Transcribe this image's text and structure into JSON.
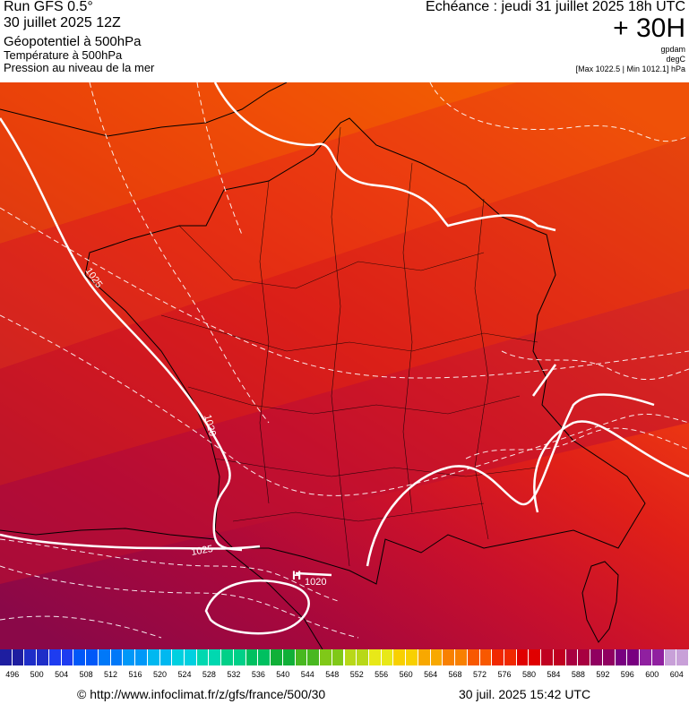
{
  "header": {
    "run": "Run GFS 0.5°",
    "run_date": "30 juillet 2025 12Z",
    "field1": "Géopotentiel à 500hPa",
    "field2": "Température à 500hPa",
    "field3": "Pression au niveau de la mer",
    "echeance": "Echéance : jeudi 31 juillet 2025 18h UTC",
    "forecast_hour": "+ 30H",
    "unit_gpdam": "gpdam",
    "unit_degc": "degC",
    "minmax": "[Max 1022.5 | Min 1012.1] hPa"
  },
  "map_labels": {
    "isobar_1025_west": "1025",
    "isobar_1020_sw": "1020",
    "isobar_1025_south": "1025",
    "low_marker": "H",
    "low_value": "1020"
  },
  "legend": {
    "values": [
      "496",
      "500",
      "504",
      "508",
      "512",
      "516",
      "520",
      "524",
      "528",
      "532",
      "536",
      "540",
      "544",
      "548",
      "552",
      "556",
      "560",
      "564",
      "568",
      "572",
      "576",
      "580",
      "584",
      "588",
      "592",
      "596",
      "600",
      "604"
    ],
    "colors": [
      "#1e1ea0",
      "#1e2ec8",
      "#1e3cf0",
      "#0058f8",
      "#0078f8",
      "#0098f8",
      "#00b8f0",
      "#00d0e0",
      "#00d8b0",
      "#00d088",
      "#00c060",
      "#10b038",
      "#48b820",
      "#80c818",
      "#b8d818",
      "#e8e818",
      "#f8d000",
      "#f8a800",
      "#f88000",
      "#f85800",
      "#f02800",
      "#e00000",
      "#c00020",
      "#a80040",
      "#900060",
      "#780080",
      "#9020a0",
      "#c8a0d8"
    ]
  },
  "footer": {
    "url": "© http://www.infoclimat.fr/z/gfs/france/500/30",
    "timestamp": "30 juil. 2025 15:42 UTC"
  }
}
